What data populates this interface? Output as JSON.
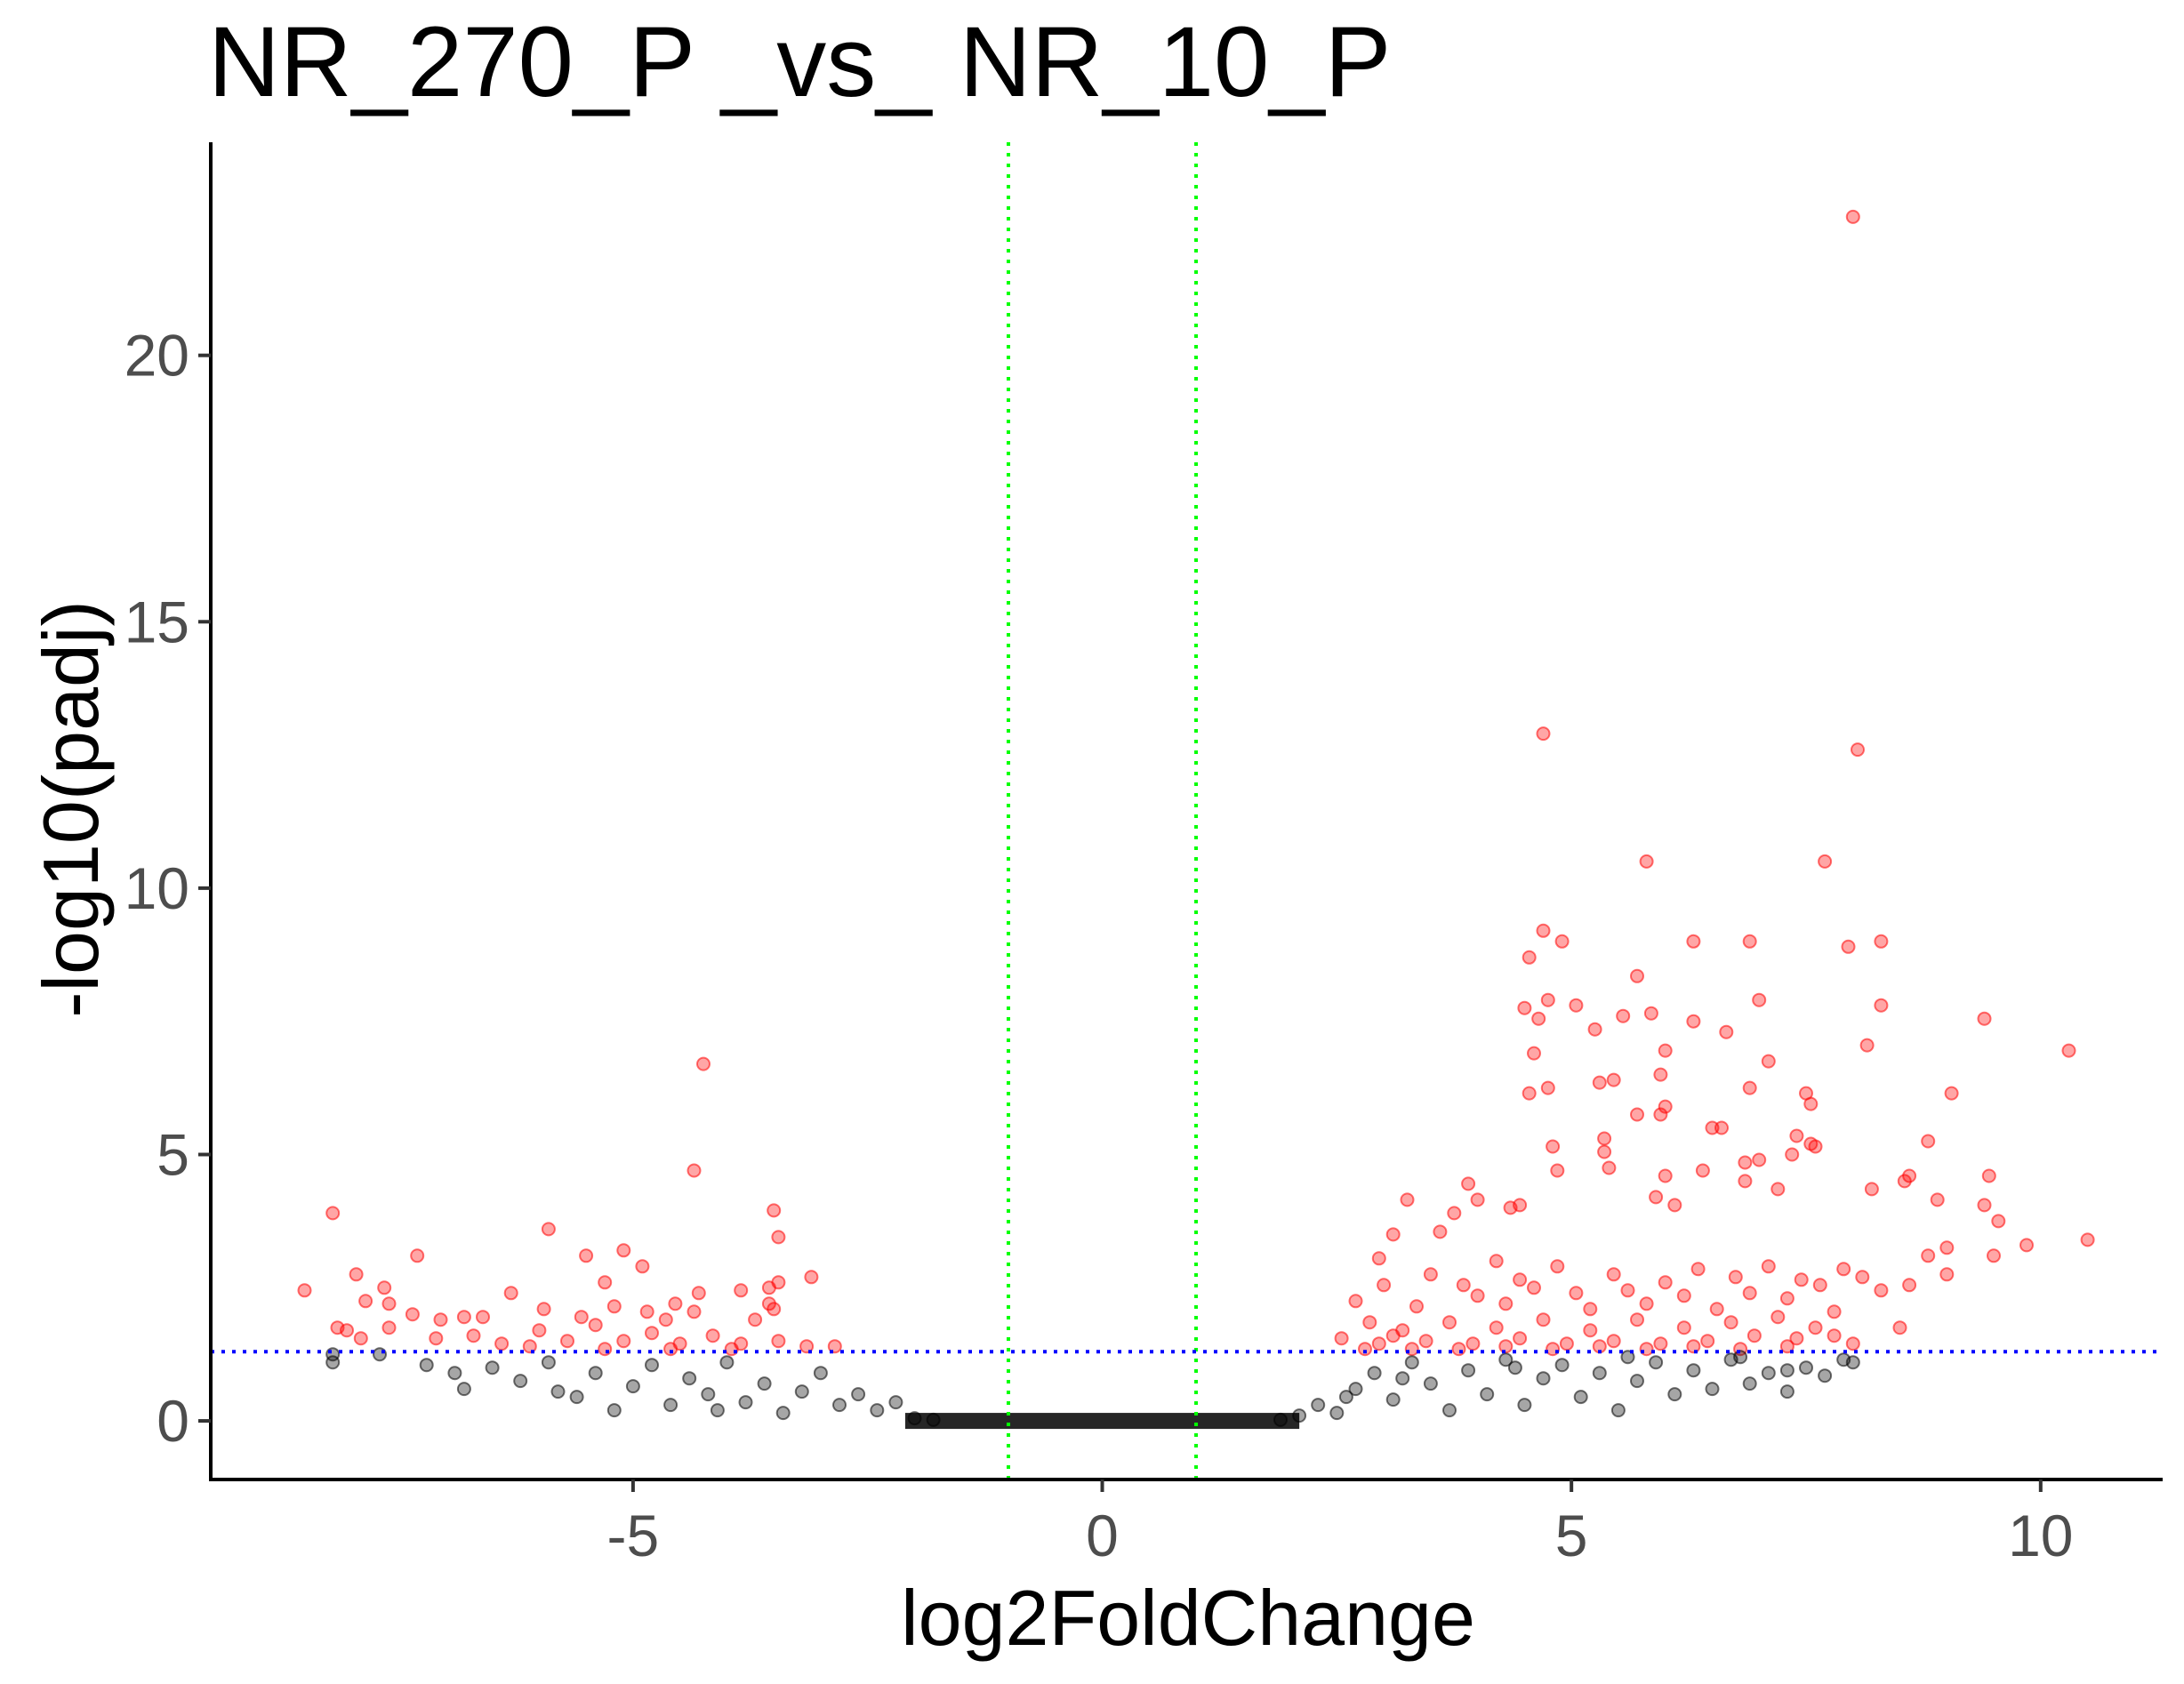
{
  "chart_data": {
    "type": "scatter",
    "title": "NR_270_P _vs_ NR_10_P",
    "xlabel": "log2FoldChange",
    "ylabel": "-log10(padj)",
    "xlim": [
      -9.5,
      11.3
    ],
    "ylim": [
      -1.1,
      24
    ],
    "x_ticks": [
      -5,
      0,
      5,
      10
    ],
    "x_tick_labels": [
      "-5",
      "0",
      "5",
      "10"
    ],
    "y_ticks": [
      0,
      5,
      10,
      15,
      20
    ],
    "y_tick_labels": [
      "0",
      "5",
      "10",
      "15",
      "20"
    ],
    "grid": false,
    "legend": "none",
    "thresholds": {
      "log2fc": [
        -1,
        1
      ],
      "neg_log10_padj": 1.3
    },
    "colors": {
      "significant": "#ff0000",
      "not_significant": "#000000",
      "fc_threshold_line": "#00ff00",
      "padj_threshold_line": "#0000ff"
    },
    "series": [
      {
        "group": "significant",
        "points": [
          [
            8.0,
            22.6
          ],
          [
            4.7,
            12.9
          ],
          [
            8.05,
            12.6
          ],
          [
            5.8,
            10.5
          ],
          [
            7.7,
            10.5
          ],
          [
            4.7,
            9.2
          ],
          [
            4.9,
            9.0
          ],
          [
            6.3,
            9.0
          ],
          [
            6.9,
            9.0
          ],
          [
            8.3,
            9.0
          ],
          [
            7.95,
            8.9
          ],
          [
            4.55,
            8.7
          ],
          [
            5.7,
            8.35
          ],
          [
            4.75,
            7.9
          ],
          [
            5.05,
            7.8
          ],
          [
            7.0,
            7.9
          ],
          [
            8.3,
            7.8
          ],
          [
            4.5,
            7.75
          ],
          [
            5.55,
            7.6
          ],
          [
            5.85,
            7.65
          ],
          [
            9.4,
            7.55
          ],
          [
            4.65,
            7.55
          ],
          [
            6.3,
            7.5
          ],
          [
            5.25,
            7.35
          ],
          [
            6.65,
            7.3
          ],
          [
            8.15,
            7.05
          ],
          [
            10.3,
            6.95
          ],
          [
            4.6,
            6.9
          ],
          [
            6.0,
            6.95
          ],
          [
            7.1,
            6.75
          ],
          [
            5.95,
            6.5
          ],
          [
            5.3,
            6.35
          ],
          [
            5.45,
            6.4
          ],
          [
            4.75,
            6.25
          ],
          [
            4.55,
            6.15
          ],
          [
            6.9,
            6.25
          ],
          [
            7.5,
            6.15
          ],
          [
            9.05,
            6.15
          ],
          [
            6.0,
            5.9
          ],
          [
            7.55,
            5.95
          ],
          [
            5.95,
            5.75
          ],
          [
            5.7,
            5.75
          ],
          [
            6.5,
            5.5
          ],
          [
            6.6,
            5.5
          ],
          [
            7.4,
            5.35
          ],
          [
            8.8,
            5.25
          ],
          [
            5.35,
            5.3
          ],
          [
            4.8,
            5.15
          ],
          [
            5.35,
            5.05
          ],
          [
            7.55,
            5.2
          ],
          [
            7.6,
            5.15
          ],
          [
            7.35,
            5.0
          ],
          [
            6.85,
            4.85
          ],
          [
            7.0,
            4.9
          ],
          [
            5.4,
            4.75
          ],
          [
            4.85,
            4.7
          ],
          [
            6.4,
            4.7
          ],
          [
            8.6,
            4.6
          ],
          [
            9.45,
            4.6
          ],
          [
            8.55,
            4.5
          ],
          [
            6.0,
            4.6
          ],
          [
            6.85,
            4.5
          ],
          [
            3.9,
            4.45
          ],
          [
            8.2,
            4.35
          ],
          [
            7.2,
            4.35
          ],
          [
            5.9,
            4.2
          ],
          [
            4.0,
            4.15
          ],
          [
            4.45,
            4.05
          ],
          [
            4.35,
            4.0
          ],
          [
            6.1,
            4.05
          ],
          [
            8.9,
            4.15
          ],
          [
            9.4,
            4.05
          ],
          [
            9.55,
            3.75
          ],
          [
            10.5,
            3.4
          ],
          [
            9.85,
            3.3
          ],
          [
            9.5,
            3.1
          ],
          [
            9.0,
            3.25
          ],
          [
            8.8,
            3.1
          ],
          [
            9.0,
            2.75
          ],
          [
            8.6,
            2.55
          ],
          [
            8.5,
            1.75
          ],
          [
            3.25,
            4.15
          ],
          [
            3.75,
            3.9
          ],
          [
            3.1,
            3.5
          ],
          [
            3.6,
            3.55
          ],
          [
            2.95,
            3.05
          ],
          [
            2.7,
            2.25
          ],
          [
            2.55,
            1.55
          ],
          [
            3.0,
            2.55
          ],
          [
            3.5,
            2.75
          ],
          [
            4.2,
            3.0
          ],
          [
            4.45,
            2.65
          ],
          [
            3.85,
            2.55
          ],
          [
            3.35,
            2.15
          ],
          [
            2.85,
            1.85
          ],
          [
            3.1,
            1.6
          ],
          [
            4.0,
            2.35
          ],
          [
            4.3,
            2.2
          ],
          [
            4.6,
            2.5
          ],
          [
            4.85,
            2.9
          ],
          [
            5.05,
            2.4
          ],
          [
            5.2,
            2.1
          ],
          [
            5.45,
            2.75
          ],
          [
            5.6,
            2.45
          ],
          [
            5.8,
            2.2
          ],
          [
            6.0,
            2.6
          ],
          [
            6.2,
            2.35
          ],
          [
            6.35,
            2.85
          ],
          [
            6.55,
            2.1
          ],
          [
            6.75,
            2.7
          ],
          [
            6.9,
            2.4
          ],
          [
            7.1,
            2.9
          ],
          [
            7.3,
            2.3
          ],
          [
            7.45,
            2.65
          ],
          [
            7.65,
            2.55
          ],
          [
            7.9,
            2.85
          ],
          [
            8.1,
            2.7
          ],
          [
            8.3,
            2.45
          ],
          [
            7.8,
            2.05
          ],
          [
            7.6,
            1.75
          ],
          [
            7.4,
            1.55
          ],
          [
            7.2,
            1.95
          ],
          [
            6.95,
            1.6
          ],
          [
            6.7,
            1.85
          ],
          [
            6.45,
            1.5
          ],
          [
            6.2,
            1.75
          ],
          [
            5.95,
            1.45
          ],
          [
            5.7,
            1.9
          ],
          [
            5.45,
            1.5
          ],
          [
            5.2,
            1.7
          ],
          [
            4.95,
            1.45
          ],
          [
            4.7,
            1.9
          ],
          [
            4.45,
            1.55
          ],
          [
            4.2,
            1.75
          ],
          [
            3.95,
            1.45
          ],
          [
            3.7,
            1.85
          ],
          [
            3.45,
            1.5
          ],
          [
            3.2,
            1.7
          ],
          [
            2.95,
            1.45
          ],
          [
            2.8,
            1.35
          ],
          [
            3.3,
            1.35
          ],
          [
            3.8,
            1.35
          ],
          [
            4.3,
            1.4
          ],
          [
            4.8,
            1.35
          ],
          [
            5.3,
            1.4
          ],
          [
            5.8,
            1.35
          ],
          [
            6.3,
            1.4
          ],
          [
            6.8,
            1.35
          ],
          [
            7.3,
            1.4
          ],
          [
            7.8,
            1.6
          ],
          [
            8.0,
            1.45
          ],
          [
            -8.2,
            3.9
          ],
          [
            -7.3,
            3.1
          ],
          [
            -5.9,
            3.6
          ],
          [
            -5.5,
            3.1
          ],
          [
            -5.1,
            3.2
          ],
          [
            -4.9,
            2.9
          ],
          [
            -5.3,
            2.6
          ],
          [
            -4.25,
            6.7
          ],
          [
            -4.35,
            4.7
          ],
          [
            -3.5,
            3.95
          ],
          [
            -3.45,
            3.45
          ],
          [
            -3.1,
            2.7
          ],
          [
            -3.45,
            2.6
          ],
          [
            -3.55,
            2.5
          ],
          [
            -3.85,
            2.45
          ],
          [
            -3.55,
            2.2
          ],
          [
            -3.5,
            2.1
          ],
          [
            -3.7,
            1.9
          ],
          [
            -4.3,
            2.4
          ],
          [
            -4.55,
            2.2
          ],
          [
            -4.35,
            2.05
          ],
          [
            -4.85,
            2.05
          ],
          [
            -4.65,
            1.9
          ],
          [
            -5.2,
            2.15
          ],
          [
            -5.55,
            1.95
          ],
          [
            -5.95,
            2.1
          ],
          [
            -6.3,
            2.4
          ],
          [
            -6.6,
            1.95
          ],
          [
            -6.8,
            1.95
          ],
          [
            -7.05,
            1.9
          ],
          [
            -7.35,
            2.0
          ],
          [
            -7.65,
            2.5
          ],
          [
            -7.95,
            2.75
          ],
          [
            -7.85,
            2.25
          ],
          [
            -7.6,
            2.2
          ],
          [
            -8.5,
            2.45
          ],
          [
            -8.15,
            1.75
          ],
          [
            -8.05,
            1.7
          ],
          [
            -7.9,
            1.55
          ],
          [
            -7.6,
            1.75
          ],
          [
            -7.1,
            1.55
          ],
          [
            -6.7,
            1.6
          ],
          [
            -6.4,
            1.45
          ],
          [
            -6.0,
            1.7
          ],
          [
            -5.7,
            1.5
          ],
          [
            -5.4,
            1.8
          ],
          [
            -5.1,
            1.5
          ],
          [
            -4.8,
            1.65
          ],
          [
            -4.5,
            1.45
          ],
          [
            -4.15,
            1.6
          ],
          [
            -3.85,
            1.45
          ],
          [
            -3.45,
            1.5
          ],
          [
            -3.15,
            1.4
          ],
          [
            -2.85,
            1.4
          ],
          [
            -6.1,
            1.4
          ],
          [
            -5.3,
            1.35
          ],
          [
            -4.6,
            1.35
          ],
          [
            -3.95,
            1.35
          ]
        ]
      },
      {
        "group": "not_significant",
        "points": [
          [
            -8.2,
            1.1
          ],
          [
            -8.2,
            1.25
          ],
          [
            -7.7,
            1.25
          ],
          [
            -7.2,
            1.05
          ],
          [
            -6.9,
            0.9
          ],
          [
            -6.8,
            0.6
          ],
          [
            -6.5,
            1.0
          ],
          [
            -6.2,
            0.75
          ],
          [
            -5.9,
            1.1
          ],
          [
            -5.6,
            0.45
          ],
          [
            -5.4,
            0.9
          ],
          [
            -5.2,
            0.2
          ],
          [
            -5.0,
            0.65
          ],
          [
            -4.8,
            1.05
          ],
          [
            -4.6,
            0.3
          ],
          [
            -4.4,
            0.8
          ],
          [
            -4.2,
            0.5
          ],
          [
            -4.0,
            1.1
          ],
          [
            -3.8,
            0.35
          ],
          [
            -3.6,
            0.7
          ],
          [
            -3.4,
            0.15
          ],
          [
            -3.2,
            0.55
          ],
          [
            -3.0,
            0.9
          ],
          [
            -2.8,
            0.3
          ],
          [
            -2.6,
            0.5
          ],
          [
            -2.4,
            0.2
          ],
          [
            -2.2,
            0.35
          ],
          [
            -2.0,
            0.05
          ],
          [
            -1.8,
            0.02
          ],
          [
            1.9,
            0.02
          ],
          [
            2.1,
            0.1
          ],
          [
            2.3,
            0.3
          ],
          [
            2.5,
            0.15
          ],
          [
            2.7,
            0.6
          ],
          [
            2.9,
            0.9
          ],
          [
            3.1,
            0.4
          ],
          [
            3.3,
            1.1
          ],
          [
            3.5,
            0.7
          ],
          [
            3.7,
            0.2
          ],
          [
            3.9,
            0.95
          ],
          [
            4.1,
            0.5
          ],
          [
            4.3,
            1.15
          ],
          [
            4.5,
            0.3
          ],
          [
            4.7,
            0.8
          ],
          [
            4.9,
            1.05
          ],
          [
            5.1,
            0.45
          ],
          [
            5.3,
            0.9
          ],
          [
            5.5,
            0.2
          ],
          [
            5.7,
            0.75
          ],
          [
            5.9,
            1.1
          ],
          [
            6.1,
            0.5
          ],
          [
            6.3,
            0.95
          ],
          [
            6.5,
            0.6
          ],
          [
            6.7,
            1.15
          ],
          [
            6.9,
            0.7
          ],
          [
            7.1,
            0.9
          ],
          [
            7.3,
            0.55
          ],
          [
            7.5,
            1.0
          ],
          [
            7.7,
            0.85
          ],
          [
            7.9,
            1.15
          ],
          [
            8.0,
            1.1
          ],
          [
            7.3,
            0.95
          ],
          [
            6.8,
            1.2
          ],
          [
            5.6,
            1.2
          ],
          [
            4.4,
            1.0
          ],
          [
            3.2,
            0.8
          ],
          [
            2.6,
            0.45
          ],
          [
            -5.8,
            0.55
          ],
          [
            -4.1,
            0.2
          ]
        ]
      }
    ]
  }
}
